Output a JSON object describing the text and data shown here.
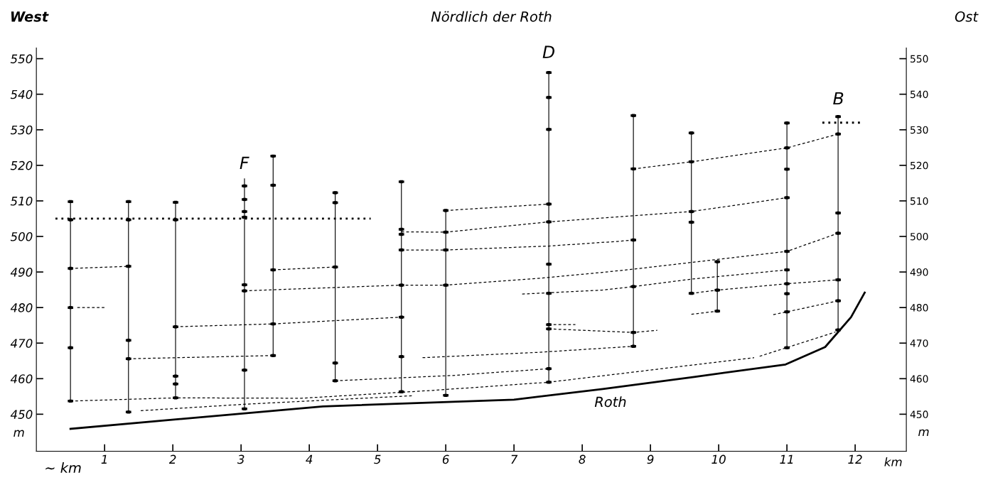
{
  "chart_data": {
    "type": "line",
    "title": "Nördlich der Roth",
    "annotations": [
      "West",
      "Ost",
      "~ km",
      "F",
      "D",
      "B",
      "Roth"
    ],
    "xlabel": "km",
    "ylabel": "m",
    "y2label": "m",
    "xlim": [
      0,
      12.75
    ],
    "xticks": [
      1,
      2,
      3,
      4,
      5,
      6,
      7,
      8,
      9,
      10,
      11,
      12
    ],
    "ylim": [
      439.6,
      553
    ],
    "yticks": [
      450,
      460,
      470,
      480,
      490,
      500,
      510,
      520,
      530,
      540,
      550
    ],
    "y2lim": [
      439.6,
      553
    ],
    "y2ticks": [
      450,
      460,
      470,
      480,
      490,
      500,
      510,
      520,
      530,
      540,
      550
    ],
    "grid": false,
    "series": [
      {
        "type": "bar",
        "color": "#000000",
        "x": [
          0.5,
          1.35,
          2.04,
          3.05,
          3.47,
          4.38,
          5.35,
          6.0,
          7.51,
          8.75,
          9.6,
          9.98,
          11.0,
          11.75
        ],
        "base": [
          453.7,
          450.6,
          454.6,
          451.5,
          466.5,
          459.4,
          456.3,
          455.3,
          459.0,
          469.1,
          484.0,
          479.0,
          468.7,
          473.7
        ],
        "values": [
          56.1,
          59.2,
          55.0,
          64.8,
          56.1,
          52.9,
          59.1,
          52.0,
          87.1,
          64.9,
          45.1,
          13.9,
          63.2,
          60.0
        ]
      },
      {
        "type": "scatter",
        "marker": "square",
        "color": "#000000",
        "xerrors": [
          0.04,
          0.04,
          0.04,
          0.04,
          0.04,
          0.04,
          0.04,
          0.04,
          0.04,
          0.04,
          0.04,
          0.04,
          0.04,
          0.04,
          0.04,
          0.04,
          0.04,
          0.04,
          0.04,
          0.04,
          0.04,
          0.04,
          0.04,
          0.04,
          0.04,
          0.04,
          0.04,
          0.04,
          0.04,
          0.04,
          0.04,
          0.04,
          0.04,
          0.04,
          0.04,
          0.04,
          0.04,
          0.04,
          0.04,
          0.04,
          0.04,
          0.04,
          0.04,
          0.04,
          0.04,
          0.04,
          0.04,
          0.04,
          0.04,
          0.04,
          0.04,
          0.04,
          0.04,
          0.04,
          0.04,
          0.04,
          0.04,
          0.04,
          0.04,
          0.04,
          0.04,
          0.04,
          0.04,
          0.04,
          0.04,
          0.04,
          0.04,
          0.04,
          0.04,
          0.04,
          0.04,
          0.04,
          0.04,
          0.04,
          0.04,
          0.04,
          0.04,
          0.04,
          0.04,
          0.04,
          0.04,
          0.04,
          0.04,
          0.04,
          0.04,
          0.04,
          0.04,
          0.04,
          0.04,
          0.04,
          0.04
        ],
        "x": [
          0.5,
          0.5,
          0.5,
          0.5,
          0.5,
          0.5,
          1.35,
          1.35,
          1.35,
          1.35,
          1.35,
          1.35,
          2.04,
          2.04,
          2.04,
          2.04,
          2.04,
          2.04,
          3.05,
          3.05,
          3.05,
          3.05,
          3.05,
          3.05,
          3.05,
          3.05,
          3.47,
          3.47,
          3.47,
          3.47,
          3.47,
          4.38,
          4.38,
          4.38,
          4.38,
          4.38,
          5.35,
          5.35,
          5.35,
          5.35,
          5.35,
          5.35,
          5.35,
          5.35,
          6.0,
          6.0,
          6.0,
          6.0,
          6.0,
          7.51,
          7.51,
          7.51,
          7.51,
          7.51,
          7.51,
          7.51,
          7.51,
          7.51,
          7.51,
          7.51,
          8.75,
          8.75,
          8.75,
          8.75,
          8.75,
          8.75,
          9.6,
          9.6,
          9.6,
          9.6,
          9.6,
          9.98,
          9.98,
          9.98,
          11.0,
          11.0,
          11.0,
          11.0,
          11.0,
          11.0,
          11.0,
          11.0,
          11.0,
          11.0,
          11.75,
          11.75,
          11.75,
          11.75,
          11.75,
          11.75,
          11.75
        ],
        "values": [
          509.8,
          504.7,
          491.0,
          480.0,
          468.7,
          453.7,
          509.8,
          504.7,
          491.6,
          470.8,
          465.6,
          450.6,
          509.6,
          504.7,
          474.6,
          460.7,
          458.5,
          454.6,
          514.2,
          510.4,
          507.0,
          505.4,
          486.4,
          484.7,
          462.4,
          451.5,
          522.6,
          514.4,
          490.6,
          475.4,
          466.5,
          512.3,
          509.5,
          491.4,
          464.4,
          459.4,
          515.4,
          502.0,
          500.6,
          496.2,
          486.3,
          477.3,
          466.2,
          456.3,
          507.3,
          501.2,
          496.2,
          486.3,
          455.3,
          546.1,
          539.1,
          530.1,
          509.1,
          504.1,
          492.2,
          484.0,
          475.2,
          474.0,
          462.8,
          459.0,
          534.0,
          519.0,
          499.0,
          485.9,
          473.0,
          469.1,
          529.1,
          521.0,
          507.0,
          504.0,
          484.0,
          492.9,
          484.9,
          479.0,
          531.9,
          524.9,
          518.9,
          510.9,
          495.8,
          490.6,
          486.7,
          483.9,
          478.8,
          468.7,
          533.7,
          528.8,
          506.6,
          500.9,
          487.8,
          481.9,
          473.7
        ]
      },
      {
        "color": "#000000",
        "line_style": "solid",
        "x": [
          0.5,
          4.2,
          7.0,
          8.3,
          9.64,
          10.98,
          11.56,
          11.94,
          12.14
        ],
        "values": [
          445.9,
          452.2,
          454.1,
          457.1,
          460.5,
          464.0,
          468.9,
          477.3,
          484.2
        ]
      },
      {
        "color": "#000000",
        "line_style": "dotted",
        "x": [
          0.28,
          4.9
        ],
        "values": [
          505,
          505
        ]
      },
      {
        "color": "#000000",
        "line_style": "dotted",
        "x": [
          11.52,
          12.07
        ],
        "values": [
          532,
          532
        ]
      },
      {
        "color": "#000000",
        "line_style": "dashed",
        "x": [
          0.5,
          1.35
        ],
        "values": [
          491.0,
          491.6
        ]
      },
      {
        "color": "#000000",
        "line_style": "dashed",
        "x": [
          0.6,
          1.0
        ],
        "values": [
          480,
          480
        ]
      },
      {
        "color": "#000000",
        "line_style": "dashed",
        "x": [
          0.5,
          2.04,
          3.89,
          5.81,
          7.51,
          8.51,
          10.52
        ],
        "values": [
          453.7,
          454.6,
          454.5,
          456.7,
          459.0,
          461.3,
          465.9
        ]
      },
      {
        "color": "#000000",
        "line_style": "dashed",
        "x": [
          10.6,
          11.71
        ],
        "values": [
          466.3,
          473.1
        ]
      },
      {
        "color": "#000000",
        "line_style": "dashed",
        "x": [
          1.53,
          3.05,
          5.51
        ],
        "values": [
          451.0,
          452.8,
          455.2
        ]
      },
      {
        "color": "#000000",
        "line_style": "dashed",
        "x": [
          1.35,
          3.47
        ],
        "values": [
          465.6,
          466.5
        ]
      },
      {
        "color": "#000000",
        "line_style": "dashed",
        "x": [
          2.04,
          3.47,
          5.35
        ],
        "values": [
          474.6,
          475.4,
          477.3
        ]
      },
      {
        "color": "#000000",
        "line_style": "dashed",
        "x": [
          3.47,
          4.38
        ],
        "values": [
          490.6,
          491.4
        ]
      },
      {
        "color": "#000000",
        "line_style": "dashed",
        "x": [
          3.05,
          3.47,
          5.35,
          6.0,
          7.41,
          8.3,
          8.75,
          11.0,
          11.75
        ],
        "values": [
          484.7,
          485.0,
          486.3,
          486.3,
          488.3,
          489.9,
          490.8,
          495.8,
          500.9
        ]
      },
      {
        "color": "#000000",
        "line_style": "dashed",
        "x": [
          5.66,
          7.35,
          8.75
        ],
        "values": [
          465.9,
          467.4,
          469.1
        ]
      },
      {
        "color": "#000000",
        "line_style": "dashed",
        "x": [
          4.38,
          6.1,
          7.51
        ],
        "values": [
          459.4,
          460.9,
          462.8
        ]
      },
      {
        "color": "#000000",
        "line_style": "dashed",
        "x": [
          7.51,
          8.75,
          9.1
        ],
        "values": [
          474.0,
          473.0,
          473.6
        ]
      },
      {
        "color": "#000000",
        "line_style": "dashed",
        "x": [
          7.58,
          7.9
        ],
        "values": [
          475.2,
          475.2
        ]
      },
      {
        "color": "#000000",
        "line_style": "dashed",
        "x": [
          7.12,
          8.29,
          8.75,
          9.6,
          10.52,
          11.0
        ],
        "values": [
          483.8,
          484.9,
          485.9,
          488.0,
          489.7,
          490.6
        ]
      },
      {
        "color": "#000000",
        "line_style": "dashed",
        "x": [
          9.6,
          9.98,
          11.0,
          11.75
        ],
        "values": [
          484.0,
          484.9,
          486.7,
          487.8
        ]
      },
      {
        "color": "#000000",
        "line_style": "dashed",
        "x": [
          9.6,
          9.98
        ],
        "values": [
          478.1,
          479.0
        ]
      },
      {
        "color": "#000000",
        "line_style": "dashed",
        "x": [
          10.8,
          11.0,
          11.75
        ],
        "values": [
          478.0,
          478.8,
          481.9
        ]
      },
      {
        "color": "#000000",
        "line_style": "dashed",
        "x": [
          5.35,
          6.0,
          7.51,
          9.6,
          11.0
        ],
        "values": [
          501.3,
          501.2,
          504.1,
          507.0,
          510.9
        ]
      },
      {
        "color": "#000000",
        "line_style": "dashed",
        "x": [
          6.0,
          7.51
        ],
        "values": [
          507.3,
          509.1
        ]
      },
      {
        "color": "#000000",
        "line_style": "dashed",
        "x": [
          8.75,
          9.6,
          11.0,
          11.75
        ],
        "values": [
          519.0,
          521.0,
          524.9,
          528.8
        ]
      },
      {
        "color": "#000000",
        "line_style": "dashed",
        "x": [
          5.35,
          6.0,
          7.51,
          8.51,
          8.75
        ],
        "values": [
          496.2,
          496.2,
          497.3,
          498.6,
          499.0
        ]
      }
    ]
  }
}
